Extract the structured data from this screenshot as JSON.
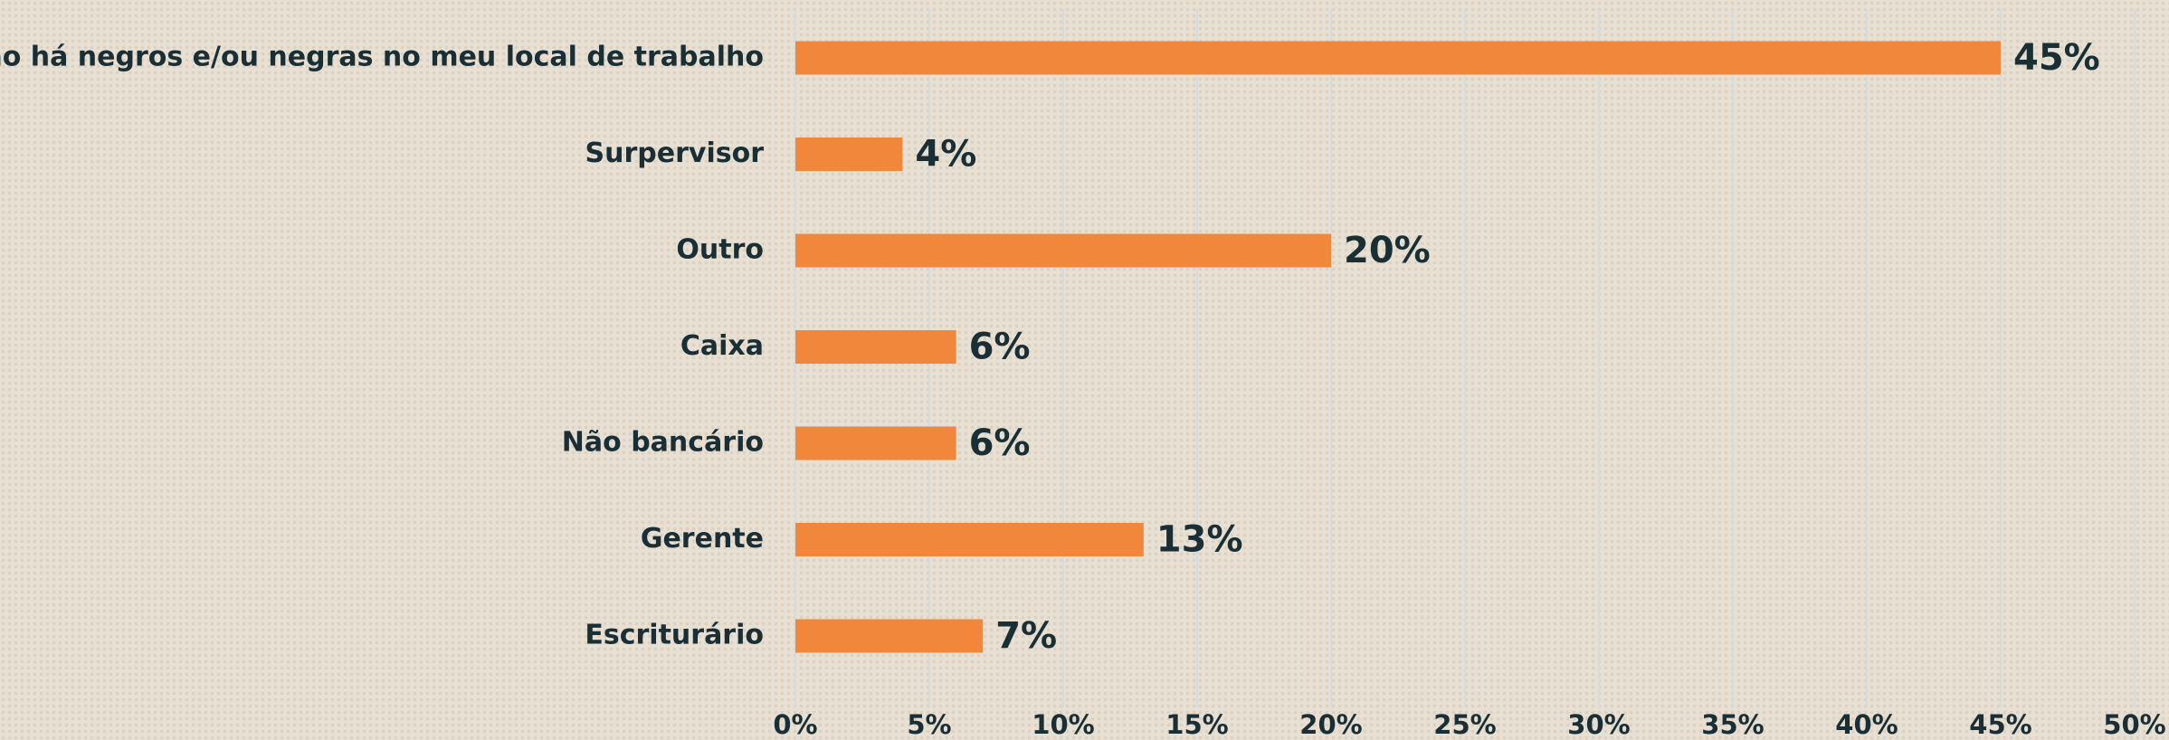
{
  "chart_data": {
    "type": "bar",
    "orientation": "horizontal",
    "categories": [
      "Não há negros e/ou negras no meu local de trabalho",
      "Surpervisor",
      "Outro",
      "Caixa",
      "Não bancário",
      "Gerente",
      "Escriturário"
    ],
    "values": [
      45,
      4,
      20,
      6,
      6,
      13,
      7
    ],
    "value_labels": [
      "45%",
      "4%",
      "20%",
      "6%",
      "6%",
      "13%",
      "7%"
    ],
    "color": "#f0873a",
    "xlim": [
      0,
      50
    ],
    "xticks": [
      {
        "value": 0,
        "label": "0%"
      },
      {
        "value": 5,
        "label": "5%"
      },
      {
        "value": 10,
        "label": "10%"
      },
      {
        "value": 15,
        "label": "15%"
      },
      {
        "value": 20,
        "label": "20%"
      },
      {
        "value": 25,
        "label": "25%"
      },
      {
        "value": 30,
        "label": "30%"
      },
      {
        "value": 35,
        "label": "35%"
      },
      {
        "value": 40,
        "label": "40%"
      },
      {
        "value": 45,
        "label": "45%"
      },
      {
        "value": 50,
        "label": "50%"
      }
    ],
    "grid": true
  }
}
